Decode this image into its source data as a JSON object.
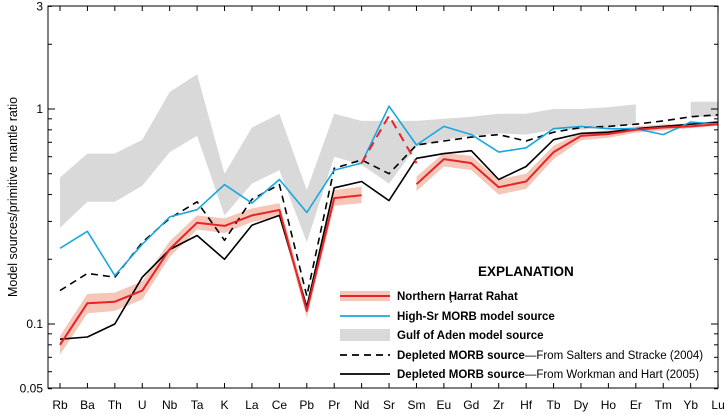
{
  "chart_data": {
    "type": "line",
    "title": "",
    "ylabel": "Model sources/primitive mantle ratio",
    "xlabel": "",
    "yscale": "log",
    "ylim": [
      0.05,
      3
    ],
    "y_ticks": [
      {
        "value": 3,
        "label": "3"
      },
      {
        "value": 1,
        "label": "1"
      },
      {
        "value": 0.1,
        "label": "0.1"
      },
      {
        "value": 0.05,
        "label": "0.05"
      }
    ],
    "categories": [
      "Rb",
      "Ba",
      "Th",
      "U",
      "Nb",
      "Ta",
      "K",
      "La",
      "Ce",
      "Pb",
      "Pr",
      "Nd",
      "Sr",
      "Sm",
      "Eu",
      "Gd",
      "Zr",
      "Hf",
      "Tb",
      "Dy",
      "Ho",
      "Er",
      "Tm",
      "Yb",
      "Lu"
    ],
    "band": {
      "name": "Gulf of Aden model source",
      "color": "#d9d9d9",
      "upper": [
        0.48,
        0.62,
        0.62,
        0.72,
        1.2,
        1.45,
        0.5,
        0.82,
        0.95,
        0.42,
        0.95,
        0.88,
        0.88,
        0.88,
        0.9,
        0.92,
        0.95,
        0.95,
        1.0,
        1.0,
        1.02,
        1.05,
        null,
        1.08,
        1.08
      ],
      "lower": [
        0.28,
        0.37,
        0.37,
        0.44,
        0.63,
        0.75,
        0.32,
        0.45,
        0.52,
        0.24,
        0.6,
        0.55,
        0.45,
        0.67,
        0.72,
        0.75,
        0.77,
        0.76,
        0.8,
        0.8,
        0.82,
        0.85,
        null,
        0.92,
        0.92
      ]
    },
    "red_band": {
      "upper": [
        0.088,
        0.138,
        0.14,
        0.158,
        0.243,
        0.32,
        0.31,
        0.345,
        0.365,
        0.125,
        0.42,
        0.435,
        null,
        0.485,
        0.625,
        0.605,
        0.47,
        0.5,
        0.675,
        0.78,
        0.795,
        0.83,
        0.85,
        0.85,
        0.87
      ],
      "lower": [
        0.072,
        0.112,
        0.115,
        0.13,
        0.205,
        0.275,
        0.265,
        0.298,
        0.315,
        0.107,
        0.355,
        0.365,
        null,
        0.415,
        0.54,
        0.52,
        0.4,
        0.425,
        0.585,
        0.715,
        0.735,
        0.775,
        0.795,
        0.815,
        0.835
      ]
    },
    "series": [
      {
        "name": "Northern Ḩarrat Rahat",
        "color": "#e8232a",
        "dash": "",
        "values": [
          0.08,
          0.125,
          0.127,
          0.143,
          0.223,
          0.296,
          0.286,
          0.32,
          0.339,
          0.115,
          0.385,
          0.397,
          null,
          0.447,
          0.585,
          0.56,
          0.433,
          0.46,
          0.63,
          0.75,
          0.765,
          0.8,
          0.82,
          0.83,
          0.85
        ],
        "dashed_segment": [
          [
            11,
            0.56
          ],
          [
            12,
            0.93
          ],
          [
            13,
            0.56
          ]
        ]
      },
      {
        "name": "High-Sr MORB model source",
        "color": "#1aa7e0",
        "dash": "",
        "values": [
          0.225,
          0.27,
          0.168,
          0.235,
          0.315,
          0.34,
          0.445,
          0.365,
          0.47,
          0.33,
          0.52,
          0.56,
          1.03,
          0.68,
          0.83,
          0.76,
          0.63,
          0.66,
          0.81,
          0.83,
          0.81,
          0.81,
          0.76,
          0.87,
          0.85
        ]
      },
      {
        "name": "Depleted MORB source",
        "color": "#000000",
        "dash": "7,5",
        "values": [
          0.143,
          0.172,
          0.165,
          0.24,
          0.31,
          0.37,
          0.245,
          0.38,
          0.445,
          0.135,
          0.53,
          0.58,
          0.5,
          0.68,
          0.71,
          0.74,
          0.76,
          0.71,
          0.78,
          0.82,
          0.83,
          0.85,
          0.88,
          0.92,
          0.94
        ]
      },
      {
        "name": "Depleted MORB source",
        "color": "#000000",
        "dash": "",
        "values": [
          0.085,
          0.087,
          0.1,
          0.165,
          0.222,
          0.258,
          0.2,
          0.288,
          0.32,
          0.12,
          0.43,
          0.46,
          0.375,
          0.59,
          0.62,
          0.64,
          0.47,
          0.54,
          0.72,
          0.77,
          0.78,
          0.81,
          0.83,
          0.85,
          0.87
        ]
      }
    ],
    "legend": {
      "title": "EXPLANATION",
      "placement": "bottom-right",
      "entries": [
        {
          "bold": "Northern Ḩarrat Rahat",
          "rest": ""
        },
        {
          "bold": "High-Sr MORB model source",
          "rest": ""
        },
        {
          "bold": "Gulf of Aden model source",
          "rest": ""
        },
        {
          "bold": "Depleted MORB source",
          "rest": "—From Salters and Stracke (2004)"
        },
        {
          "bold": "Depleted MORB source",
          "rest": "—From Workman and Hart (2005)"
        }
      ]
    },
    "grid": false
  }
}
